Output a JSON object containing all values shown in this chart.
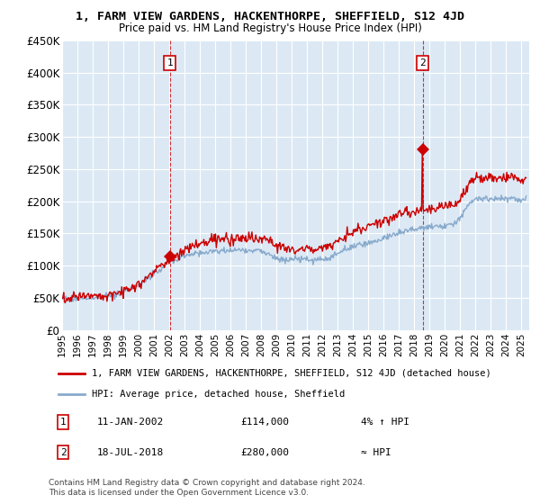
{
  "title": "1, FARM VIEW GARDENS, HACKENTHORPE, SHEFFIELD, S12 4JD",
  "subtitle": "Price paid vs. HM Land Registry's House Price Index (HPI)",
  "ylabel_ticks": [
    "£0",
    "£50K",
    "£100K",
    "£150K",
    "£200K",
    "£250K",
    "£300K",
    "£350K",
    "£400K",
    "£450K"
  ],
  "ylim": [
    0,
    450000
  ],
  "xlim_start": 1995.0,
  "xlim_end": 2025.5,
  "background_color": "#ffffff",
  "plot_bg_color": "#dce9f5",
  "grid_color": "#ffffff",
  "red_line_color": "#cc0000",
  "blue_line_color": "#88aacc",
  "sale1_x": 2002.03,
  "sale1_y": 114000,
  "sale2_x": 2018.54,
  "sale2_y": 280000,
  "legend_label_red": "1, FARM VIEW GARDENS, HACKENTHORPE, SHEFFIELD, S12 4JD (detached house)",
  "legend_label_blue": "HPI: Average price, detached house, Sheffield",
  "annotation1_label": "1",
  "annotation2_label": "2",
  "note1_date": "11-JAN-2002",
  "note1_price": "£114,000",
  "note1_hpi": "4% ↑ HPI",
  "note2_date": "18-JUL-2018",
  "note2_price": "£280,000",
  "note2_hpi": "≈ HPI",
  "footer": "Contains HM Land Registry data © Crown copyright and database right 2024.\nThis data is licensed under the Open Government Licence v3.0."
}
